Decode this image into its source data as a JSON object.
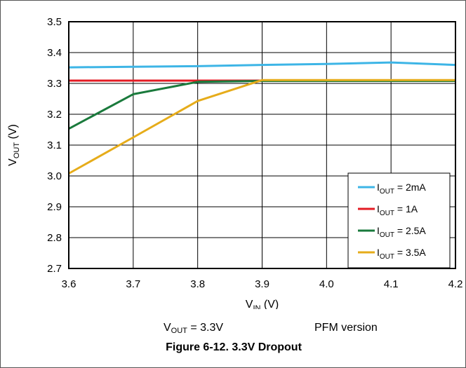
{
  "chart_data": {
    "type": "line",
    "xlabel": "V",
    "xlabel_sub": "IN",
    "xlabel_unit": " (V)",
    "ylabel": "V",
    "ylabel_sub": "OUT",
    "ylabel_unit": " (V)",
    "xlim": [
      3.6,
      4.2
    ],
    "ylim": [
      2.7,
      3.5
    ],
    "xticks": [
      "3.6",
      "3.7",
      "3.8",
      "3.9",
      "4.0",
      "4.1",
      "4.2"
    ],
    "yticks": [
      "2.7",
      "2.8",
      "2.9",
      "3.0",
      "3.1",
      "3.2",
      "3.3",
      "3.4",
      "3.5"
    ],
    "grid": true,
    "legend_position": "bottom-right",
    "series": [
      {
        "name": "I",
        "name_sub": "OUT",
        "name_rest": " = 2mA",
        "color": "#3db5e6",
        "x": [
          3.6,
          3.7,
          3.8,
          3.9,
          4.0,
          4.1,
          4.2
        ],
        "y": [
          3.352,
          3.354,
          3.356,
          3.36,
          3.363,
          3.368,
          3.36
        ]
      },
      {
        "name": "I",
        "name_sub": "OUT",
        "name_rest": " = 1A",
        "color": "#e31b23",
        "x": [
          3.6,
          3.7,
          3.8,
          3.9,
          4.0,
          4.1,
          4.2
        ],
        "y": [
          3.309,
          3.309,
          3.309,
          3.309,
          3.309,
          3.309,
          3.309
        ]
      },
      {
        "name": "I",
        "name_sub": "OUT",
        "name_rest": " = 2.5A",
        "color": "#1a7a3c",
        "x": [
          3.6,
          3.7,
          3.8,
          3.9,
          4.0,
          4.1,
          4.2
        ],
        "y": [
          3.153,
          3.265,
          3.305,
          3.308,
          3.308,
          3.308,
          3.308
        ]
      },
      {
        "name": "I",
        "name_sub": "OUT",
        "name_rest": " = 3.5A",
        "color": "#e6ac1a",
        "x": [
          3.6,
          3.7,
          3.8,
          3.9,
          4.0,
          4.1,
          4.2
        ],
        "y": [
          3.008,
          3.125,
          3.243,
          3.311,
          3.311,
          3.311,
          3.311
        ]
      }
    ]
  },
  "notes": {
    "vout_main": "V",
    "vout_sub": "OUT",
    "vout_rest": " = 3.3V",
    "version": "PFM version"
  },
  "caption": "Figure 6-12. 3.3V Dropout"
}
